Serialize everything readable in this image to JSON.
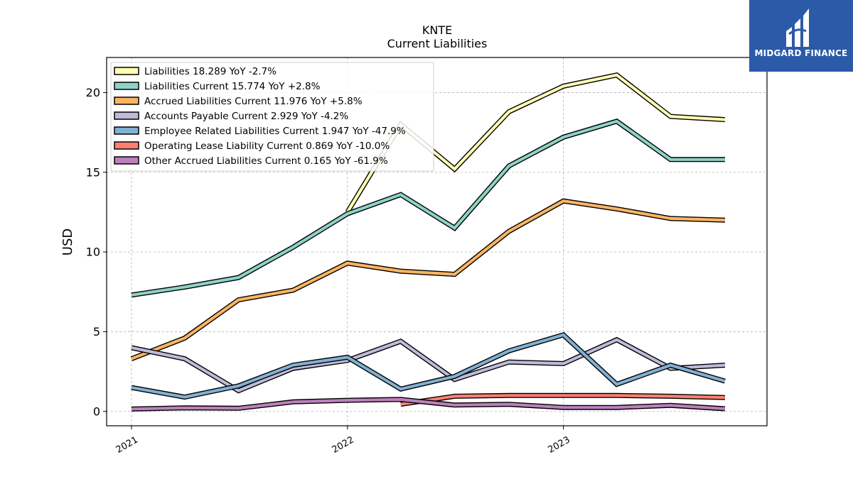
{
  "chart_data": {
    "type": "line",
    "title": "KNTE",
    "subtitle": "Current  Liabilities",
    "ylabel": "USD",
    "xlabel": "",
    "ylim": [
      -0.9,
      22.2
    ],
    "xlim": [
      "2020-11-20",
      "2023-12-11"
    ],
    "yticks": [
      0,
      5,
      10,
      15,
      20
    ],
    "xticks": [
      "2021",
      "2022",
      "2023"
    ],
    "grid": true,
    "legend_position": "upper-left",
    "x": [
      "2021-01-01",
      "2021-04-01",
      "2021-07-01",
      "2021-10-01",
      "2022-01-01",
      "2022-04-01",
      "2022-07-01",
      "2022-10-01",
      "2023-01-01",
      "2023-04-01",
      "2023-07-01",
      "2023-10-01"
    ],
    "series": [
      {
        "name": "Liabilities  18.289 YoY -2.7%",
        "color": "#ffffb3",
        "values": [
          null,
          null,
          null,
          null,
          12.5,
          18.0,
          15.2,
          18.8,
          20.4,
          21.1,
          18.5,
          18.3
        ]
      },
      {
        "name": "Liabilities Current  15.774 YoY +2.8%",
        "color": "#8dd3c7",
        "values": [
          7.3,
          7.8,
          8.4,
          10.3,
          12.4,
          13.6,
          11.5,
          15.4,
          17.2,
          18.2,
          15.8,
          15.8
        ]
      },
      {
        "name": "Accrued Liabilities Current  11.976 YoY +5.8%",
        "color": "#fdb462",
        "values": [
          3.3,
          4.6,
          7.0,
          7.6,
          9.3,
          8.8,
          8.6,
          11.3,
          13.2,
          12.7,
          12.1,
          12.0
        ]
      },
      {
        "name": "Accounts Payable Current  2.929 YoY -4.2%",
        "color": "#bebada",
        "values": [
          4.0,
          3.3,
          1.3,
          2.7,
          3.2,
          4.4,
          2.0,
          3.1,
          3.0,
          4.5,
          2.7,
          2.9
        ]
      },
      {
        "name": "Employee Related Liabilities Current  1.947 YoY -47.9%",
        "color": "#80b1d3",
        "values": [
          1.5,
          0.9,
          1.6,
          2.9,
          3.4,
          1.4,
          2.2,
          3.8,
          4.8,
          1.7,
          2.9,
          1.9
        ]
      },
      {
        "name": "Operating Lease Liability Current  0.869 YoY -10.0%",
        "color": "#fb8072",
        "values": [
          null,
          null,
          null,
          null,
          null,
          0.45,
          0.95,
          1.0,
          1.0,
          1.0,
          0.95,
          0.87
        ]
      },
      {
        "name": "Other Accrued Liabilities Current  0.165 YoY -61.9%",
        "color": "#bc80bd",
        "values": [
          0.15,
          0.22,
          0.2,
          0.6,
          0.7,
          0.75,
          0.4,
          0.45,
          0.25,
          0.25,
          0.38,
          0.17
        ]
      }
    ]
  },
  "logo": {
    "text": "MIDGARD FINANCE"
  }
}
